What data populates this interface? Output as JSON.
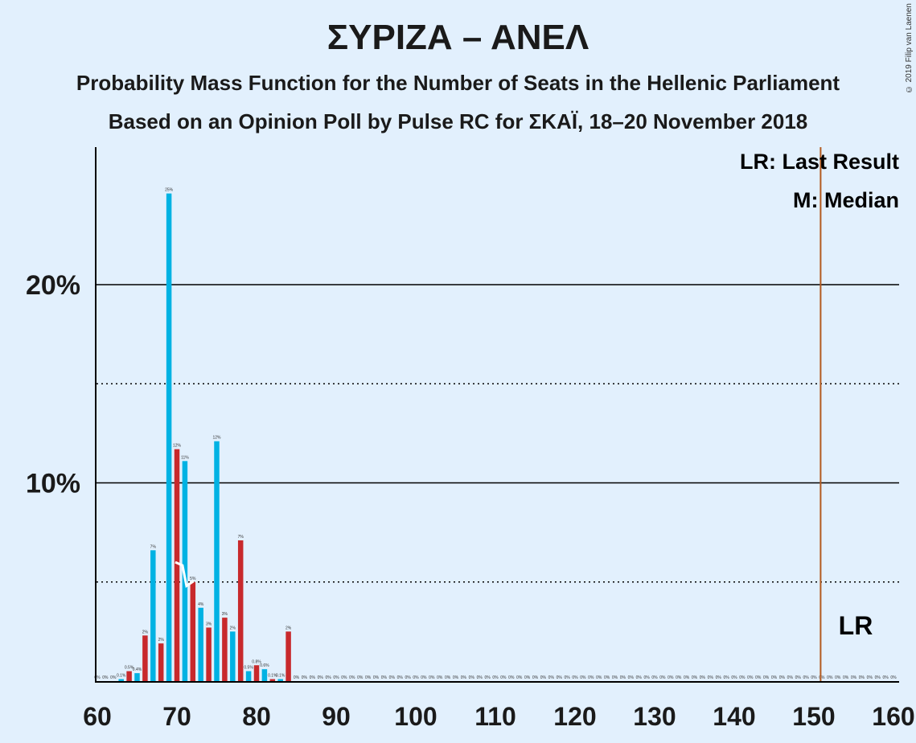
{
  "title": "ΣΥΡΙΖΑ – ΑΝΕΛ",
  "subtitle1": "Probability Mass Function for the Number of Seats in the Hellenic Parliament",
  "subtitle2": "Based on an Opinion Poll by Pulse RC for ΣΚΑΪ, 18–20 November 2018",
  "copyright": "© 2019 Filip van Laenen",
  "legend": {
    "lr": "LR: Last Result",
    "median": "M: Median",
    "lr_marker": "LR",
    "median_marker": "M"
  },
  "colors": {
    "background": "#e2f0fd",
    "cyan": "#00b2e3",
    "red": "#c8292c",
    "last_result_line": "#b35a1f",
    "axis": "#000000"
  },
  "chart_data": {
    "type": "bar",
    "xlim": [
      60,
      160
    ],
    "ylim": [
      0,
      27
    ],
    "y_unit": "%",
    "x_ticks": [
      60,
      70,
      80,
      90,
      100,
      110,
      120,
      130,
      140,
      150,
      160
    ],
    "y_ticks_labeled": [
      10,
      20
    ],
    "y_ticks_dotted": [
      5,
      15
    ],
    "last_result": 151,
    "median": 71,
    "bars": [
      {
        "seats": 60,
        "value": 0,
        "label": "0%"
      },
      {
        "seats": 61,
        "value": 0,
        "label": "0%"
      },
      {
        "seats": 62,
        "value": 0,
        "label": "0%"
      },
      {
        "seats": 63,
        "value": 0.1,
        "label": "0.1%"
      },
      {
        "seats": 64,
        "value": 0.5,
        "label": "0.5%"
      },
      {
        "seats": 65,
        "value": 0.4,
        "label": "0.4%"
      },
      {
        "seats": 66,
        "value": 2.3,
        "label": "2%"
      },
      {
        "seats": 67,
        "value": 6.6,
        "label": "7%"
      },
      {
        "seats": 68,
        "value": 1.9,
        "label": "2%"
      },
      {
        "seats": 69,
        "value": 24.6,
        "label": "25%"
      },
      {
        "seats": 70,
        "value": 11.7,
        "label": "12%"
      },
      {
        "seats": 71,
        "value": 11.1,
        "label": "11%"
      },
      {
        "seats": 72,
        "value": 5.0,
        "label": "5%"
      },
      {
        "seats": 73,
        "value": 3.7,
        "label": "4%"
      },
      {
        "seats": 74,
        "value": 2.7,
        "label": "3%"
      },
      {
        "seats": 75,
        "value": 12.1,
        "label": "12%"
      },
      {
        "seats": 76,
        "value": 3.2,
        "label": "3%"
      },
      {
        "seats": 77,
        "value": 2.5,
        "label": "2%"
      },
      {
        "seats": 78,
        "value": 7.1,
        "label": "7%"
      },
      {
        "seats": 79,
        "value": 0.5,
        "label": "0.5%"
      },
      {
        "seats": 80,
        "value": 0.8,
        "label": "0.8%"
      },
      {
        "seats": 81,
        "value": 0.6,
        "label": "0.6%"
      },
      {
        "seats": 82,
        "value": 0.1,
        "label": "0.1%"
      },
      {
        "seats": 83,
        "value": 0.1,
        "label": "0.1%"
      },
      {
        "seats": 84,
        "value": 2.5,
        "label": "2%"
      }
    ],
    "zero_fill_from": 85,
    "zero_fill_to": 160,
    "zero_label": "0%"
  }
}
